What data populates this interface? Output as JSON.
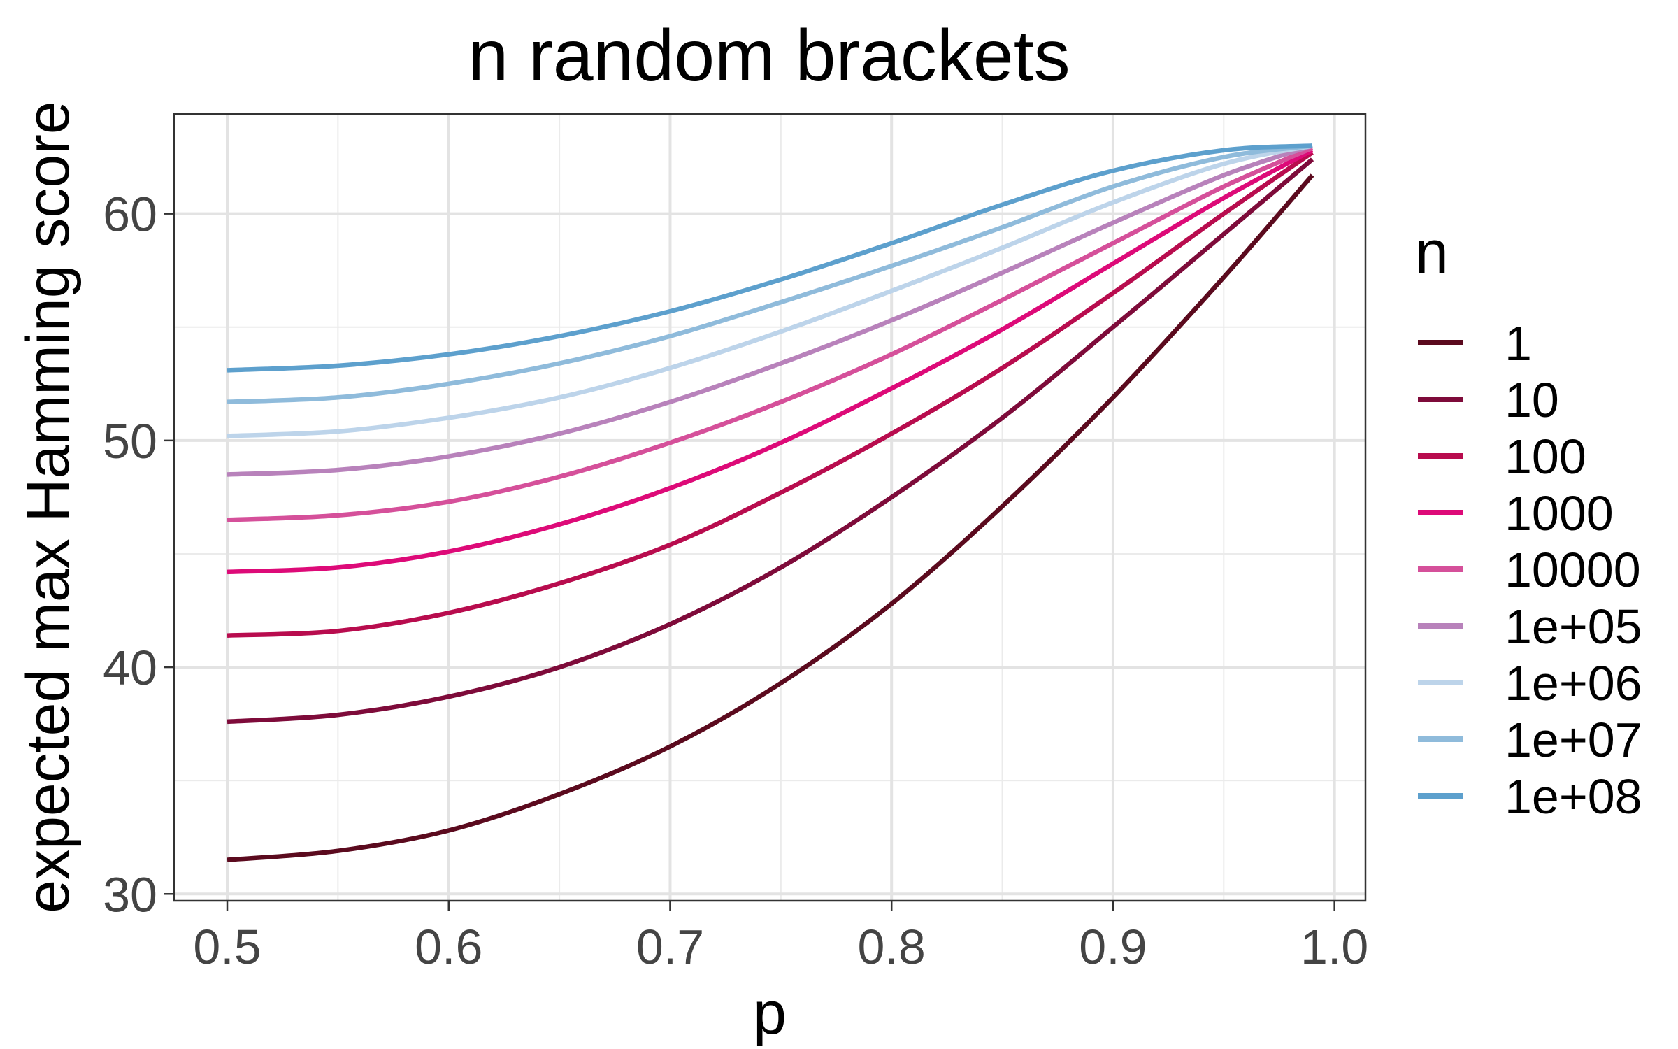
{
  "chart_data": {
    "type": "line",
    "title": "n random brackets",
    "xlabel": "p",
    "ylabel": "expected max Hamming score",
    "xlim": [
      0.476,
      1.014
    ],
    "ylim": [
      29.7,
      64.4
    ],
    "x_ticks": [
      "0.5",
      "0.6",
      "0.7",
      "0.8",
      "0.9",
      "1.0"
    ],
    "y_ticks": [
      "30",
      "40",
      "50",
      "60"
    ],
    "grid": true,
    "legend": {
      "title": "n",
      "placement": "right"
    },
    "x": [
      0.5,
      0.55,
      0.6,
      0.65,
      0.7,
      0.75,
      0.8,
      0.85,
      0.9,
      0.95,
      0.99
    ],
    "series": [
      {
        "name": "1",
        "color": "#5b0a1e",
        "values": [
          31.5,
          31.9,
          32.8,
          34.4,
          36.5,
          39.3,
          42.8,
          47.1,
          51.9,
          57.2,
          61.7
        ]
      },
      {
        "name": "10",
        "color": "#7e0b3a",
        "values": [
          37.6,
          37.9,
          38.7,
          40.0,
          41.9,
          44.4,
          47.5,
          51.0,
          55.0,
          59.1,
          62.4
        ]
      },
      {
        "name": "100",
        "color": "#b80c4e",
        "values": [
          41.4,
          41.6,
          42.4,
          43.7,
          45.4,
          47.7,
          50.3,
          53.2,
          56.5,
          60.0,
          62.7
        ]
      },
      {
        "name": "1000",
        "color": "#dd0a78",
        "values": [
          44.2,
          44.4,
          45.1,
          46.3,
          47.9,
          49.9,
          52.3,
          54.9,
          57.8,
          60.7,
          62.8
        ]
      },
      {
        "name": "10000",
        "color": "#d5509a",
        "values": [
          46.5,
          46.7,
          47.3,
          48.4,
          49.9,
          51.7,
          53.8,
          56.2,
          58.7,
          61.2,
          62.9
        ]
      },
      {
        "name": "1e+05",
        "color": "#b882bb",
        "values": [
          48.5,
          48.7,
          49.3,
          50.3,
          51.7,
          53.4,
          55.3,
          57.4,
          59.6,
          61.7,
          63.0
        ]
      },
      {
        "name": "1e+06",
        "color": "#bdd4ea",
        "values": [
          50.2,
          50.4,
          51.0,
          51.9,
          53.2,
          54.8,
          56.6,
          58.5,
          60.5,
          62.2,
          63.0
        ]
      },
      {
        "name": "1e+07",
        "color": "#8fbbdb",
        "values": [
          51.7,
          51.9,
          52.5,
          53.4,
          54.6,
          56.1,
          57.7,
          59.4,
          61.2,
          62.5,
          63.0
        ]
      },
      {
        "name": "1e+08",
        "color": "#5da0cd",
        "values": [
          53.1,
          53.3,
          53.8,
          54.6,
          55.7,
          57.1,
          58.7,
          60.4,
          61.9,
          62.8,
          63.0
        ]
      }
    ]
  }
}
